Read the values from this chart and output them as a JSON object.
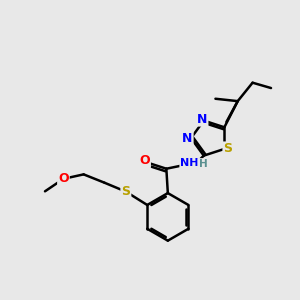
{
  "bg_color": "#e8e8e8",
  "atom_colors": {
    "N": "#0000ff",
    "S": "#b8a000",
    "O": "#ff0000",
    "C": "#000000",
    "H": "#5a9090"
  },
  "bond_color": "#000000",
  "bond_width": 1.8,
  "fig_width": 3.0,
  "fig_height": 3.0,
  "dpi": 100
}
